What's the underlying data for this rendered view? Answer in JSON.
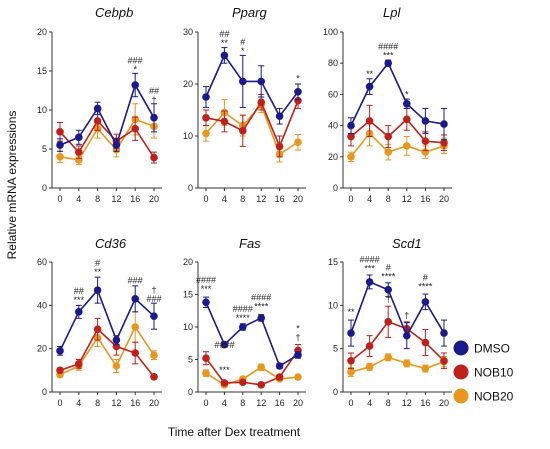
{
  "figure": {
    "ylabel": "Relative mRNA expressions",
    "xlabel": "Time after Dex treatment"
  },
  "legend": [
    {
      "name": "DMSO",
      "color": "#1a1a8c"
    },
    {
      "name": "NOB10",
      "color": "#c0201a"
    },
    {
      "name": "NOB20",
      "color": "#e8961e"
    }
  ],
  "chart_data": [
    {
      "type": "line",
      "title": "Cebpb",
      "x": [
        0,
        4,
        8,
        12,
        16,
        20
      ],
      "ylim": [
        0,
        20
      ],
      "yticks": [
        0,
        5,
        10,
        15,
        20
      ],
      "series": [
        {
          "name": "DMSO",
          "color": "#1a1a8c",
          "values": [
            5.5,
            6.5,
            10.2,
            5.5,
            13.2,
            9.0
          ],
          "err": [
            0.8,
            0.9,
            0.8,
            0.8,
            1.5,
            1.8
          ]
        },
        {
          "name": "NOB10",
          "color": "#c0201a",
          "values": [
            7.2,
            4.6,
            8.6,
            6.0,
            7.6,
            3.9
          ],
          "err": [
            1.2,
            0.8,
            1.2,
            0.9,
            1.5,
            0.7
          ]
        },
        {
          "name": "NOB20",
          "color": "#e8961e",
          "values": [
            4.0,
            3.6,
            7.6,
            4.9,
            8.8,
            7.9
          ],
          "err": [
            0.7,
            0.6,
            1.2,
            0.9,
            2.0,
            1.5
          ]
        }
      ],
      "annotations": [
        {
          "x": 16,
          "y": 14.8,
          "lines": [
            "###",
            "*"
          ]
        },
        {
          "x": 20,
          "y": 10.9,
          "lines": [
            "##",
            "†"
          ]
        }
      ]
    },
    {
      "type": "line",
      "title": "Pparg",
      "x": [
        0,
        4,
        8,
        12,
        16,
        20
      ],
      "ylim": [
        0,
        30
      ],
      "yticks": [
        0,
        10,
        20,
        30
      ],
      "series": [
        {
          "name": "DMSO",
          "color": "#1a1a8c",
          "values": [
            17.5,
            25.5,
            20.5,
            20.5,
            13.8,
            18.5
          ],
          "err": [
            2.0,
            1.5,
            5.0,
            3.0,
            1.5,
            1.5
          ]
        },
        {
          "name": "NOB10",
          "color": "#c0201a",
          "values": [
            13.5,
            12.8,
            11.0,
            16.5,
            8.0,
            16.8
          ],
          "err": [
            1.5,
            2.0,
            3.0,
            1.5,
            2.0,
            1.5
          ]
        },
        {
          "name": "NOB20",
          "color": "#e8961e",
          "values": [
            10.5,
            14.5,
            12.0,
            16.0,
            6.5,
            8.8
          ],
          "err": [
            1.5,
            2.5,
            2.0,
            1.5,
            1.5,
            1.5
          ]
        }
      ],
      "annotations": [
        {
          "x": 4,
          "y": 27.3,
          "lines": [
            "##",
            "**"
          ]
        },
        {
          "x": 8,
          "y": 25.8,
          "lines": [
            "#",
            "*"
          ]
        },
        {
          "x": 20,
          "y": 20.5,
          "lines": [
            "*"
          ]
        }
      ]
    },
    {
      "type": "line",
      "title": "Lpl",
      "x": [
        0,
        4,
        8,
        12,
        16,
        20
      ],
      "ylim": [
        0,
        100
      ],
      "yticks": [
        0,
        20,
        40,
        60,
        80,
        100
      ],
      "series": [
        {
          "name": "DMSO",
          "color": "#1a1a8c",
          "values": [
            40,
            65,
            80,
            54,
            43,
            41
          ],
          "err": [
            5,
            5,
            2,
            3,
            8,
            10
          ]
        },
        {
          "name": "NOB10",
          "color": "#c0201a",
          "values": [
            33,
            43,
            33,
            44,
            30,
            29
          ],
          "err": [
            6,
            10,
            7,
            7,
            6,
            5
          ]
        },
        {
          "name": "NOB20",
          "color": "#e8961e",
          "values": [
            20,
            35,
            23,
            27,
            23,
            27
          ],
          "err": [
            3,
            8,
            5,
            6,
            4,
            5
          ]
        }
      ],
      "annotations": [
        {
          "x": 4,
          "y": 71,
          "lines": [
            "**"
          ]
        },
        {
          "x": 8,
          "y": 83,
          "lines": [
            "####",
            "***"
          ]
        },
        {
          "x": 12,
          "y": 58,
          "lines": [
            "*"
          ]
        }
      ]
    },
    {
      "type": "line",
      "title": "Cd36",
      "x": [
        0,
        4,
        8,
        12,
        16,
        20
      ],
      "ylim": [
        0,
        60
      ],
      "yticks": [
        0,
        20,
        40,
        60
      ],
      "series": [
        {
          "name": "DMSO",
          "color": "#1a1a8c",
          "values": [
            19,
            37,
            47,
            24,
            43,
            35
          ],
          "err": [
            2,
            3,
            6,
            2,
            6,
            6
          ]
        },
        {
          "name": "NOB10",
          "color": "#c0201a",
          "values": [
            10,
            13,
            29,
            21,
            18,
            7
          ],
          "err": [
            1,
            2,
            5,
            4,
            5,
            1
          ]
        },
        {
          "name": "NOB20",
          "color": "#e8961e",
          "values": [
            8,
            12,
            25,
            12,
            30,
            17
          ],
          "err": [
            1,
            2,
            4,
            3,
            7,
            2
          ]
        }
      ],
      "annotations": [
        {
          "x": 4,
          "y": 41,
          "lines": [
            "##",
            "***"
          ]
        },
        {
          "x": 8,
          "y": 54,
          "lines": [
            "#",
            "**"
          ]
        },
        {
          "x": 16,
          "y": 50,
          "lines": [
            "###"
          ]
        },
        {
          "x": 20,
          "y": 41.5,
          "lines": [
            "†",
            "###"
          ]
        }
      ]
    },
    {
      "type": "line",
      "title": "Fas",
      "x": [
        0,
        4,
        8,
        12,
        16,
        20
      ],
      "ylim": [
        0,
        20
      ],
      "yticks": [
        0,
        5,
        10,
        15,
        20
      ],
      "series": [
        {
          "name": "DMSO",
          "color": "#1a1a8c",
          "values": [
            13.8,
            7.3,
            10.0,
            11.4,
            4.0,
            5.7
          ],
          "err": [
            0.8,
            0.4,
            0.5,
            0.5,
            0.4,
            0.5
          ]
        },
        {
          "name": "NOB10",
          "color": "#c0201a",
          "values": [
            5.2,
            1.4,
            1.5,
            1.1,
            2.3,
            6.4
          ],
          "err": [
            1.0,
            0.3,
            0.3,
            0.3,
            0.4,
            0.9
          ]
        },
        {
          "name": "NOB20",
          "color": "#e8961e",
          "values": [
            2.9,
            1.1,
            2.0,
            3.8,
            2.0,
            2.3
          ],
          "err": [
            0.5,
            0.3,
            0.3,
            0.5,
            0.3,
            0.3
          ]
        }
      ],
      "annotations": [
        {
          "x": 0,
          "y": 15.4,
          "lines": [
            "####",
            "***"
          ]
        },
        {
          "x": 4,
          "y": 6.8,
          "lines": [
            "####"
          ]
        },
        {
          "x": 4,
          "y": 2.9,
          "lines": [
            "***"
          ]
        },
        {
          "x": 8,
          "y": 10.9,
          "lines": [
            "####",
            "****"
          ]
        },
        {
          "x": 12,
          "y": 12.7,
          "lines": [
            "####",
            "****"
          ]
        },
        {
          "x": 20,
          "y": 7.9,
          "lines": [
            "*",
            "†"
          ]
        }
      ]
    },
    {
      "type": "line",
      "title": "Scd1",
      "x": [
        0,
        4,
        8,
        12,
        16,
        20
      ],
      "ylim": [
        0,
        15
      ],
      "yticks": [
        0,
        5,
        10,
        15
      ],
      "series": [
        {
          "name": "DMSO",
          "color": "#1a1a8c",
          "values": [
            6.8,
            12.7,
            11.8,
            6.5,
            10.4,
            6.8
          ],
          "err": [
            1.5,
            0.8,
            0.8,
            1.5,
            0.9,
            1.5
          ]
        },
        {
          "name": "NOB10",
          "color": "#c0201a",
          "values": [
            3.6,
            5.3,
            8.1,
            7.3,
            5.7,
            3.6
          ],
          "err": [
            0.9,
            1.2,
            1.8,
            0.8,
            1.5,
            0.9
          ]
        },
        {
          "name": "NOB20",
          "color": "#e8961e",
          "values": [
            2.3,
            2.9,
            4.0,
            3.3,
            2.7,
            3.5
          ],
          "err": [
            0.5,
            0.4,
            0.4,
            0.4,
            0.4,
            0.6
          ]
        }
      ],
      "annotations": [
        {
          "x": 0,
          "y": 8.9,
          "lines": [
            "**"
          ]
        },
        {
          "x": 4,
          "y": 13.9,
          "lines": [
            "####",
            "***"
          ]
        },
        {
          "x": 8,
          "y": 13.0,
          "lines": [
            "#",
            "****"
          ]
        },
        {
          "x": 8,
          "y": 10.4,
          "lines": [
            "†"
          ]
        },
        {
          "x": 12,
          "y": 8.5,
          "lines": [
            "†"
          ]
        },
        {
          "x": 16,
          "y": 11.8,
          "lines": [
            "#",
            "****"
          ]
        }
      ]
    }
  ]
}
